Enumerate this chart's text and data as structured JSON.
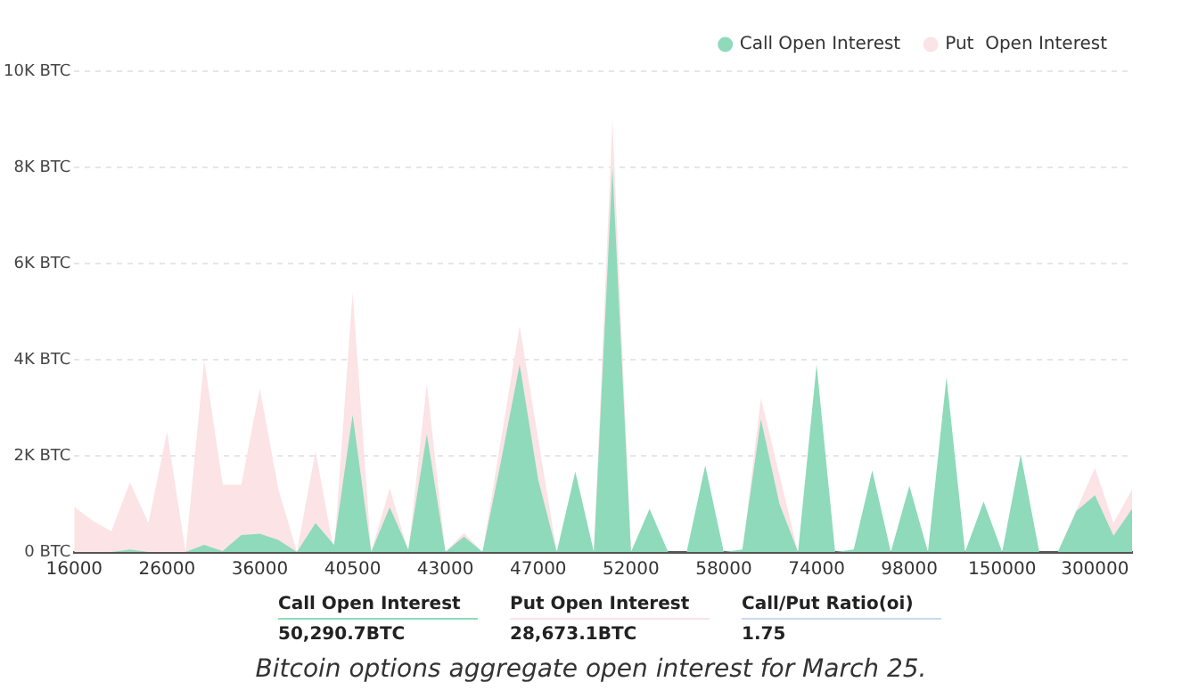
{
  "chart_data": {
    "type": "area",
    "categories": [
      "16000",
      null,
      null,
      null,
      null,
      "26000",
      null,
      null,
      null,
      null,
      "36000",
      null,
      null,
      null,
      null,
      "40500",
      null,
      null,
      null,
      null,
      "43000",
      null,
      null,
      null,
      null,
      "47000",
      null,
      null,
      null,
      null,
      "52000",
      null,
      null,
      null,
      null,
      "58000",
      null,
      null,
      null,
      null,
      "74000",
      null,
      null,
      null,
      null,
      "98000",
      null,
      null,
      null,
      null,
      "150000",
      null,
      null,
      null,
      null,
      "300000",
      null,
      null
    ],
    "series": [
      {
        "name": "Call Open Interest",
        "color": "#8edabb",
        "values": [
          0,
          0,
          0,
          50,
          0,
          0,
          0,
          150,
          20,
          350,
          380,
          250,
          0,
          600,
          150,
          2850,
          0,
          930,
          50,
          2450,
          0,
          320,
          0,
          1900,
          3900,
          1500,
          0,
          1670,
          0,
          8000,
          0,
          900,
          0,
          0,
          1800,
          0,
          50,
          2760,
          1000,
          0,
          3900,
          0,
          50,
          1700,
          0,
          1380,
          0,
          3640,
          0,
          1050,
          0,
          2030,
          0,
          0,
          850,
          1180,
          340,
          900
        ]
      },
      {
        "name": "Put  Open Interest",
        "color": "#fbe3e6",
        "values": [
          940,
          650,
          430,
          1450,
          600,
          2500,
          0,
          4000,
          1400,
          1400,
          3400,
          1300,
          0,
          2100,
          0,
          5400,
          0,
          1330,
          0,
          3500,
          0,
          400,
          0,
          null,
          4700,
          null,
          0,
          null,
          0,
          9000,
          0,
          null,
          0,
          0,
          null,
          0,
          0,
          3200,
          null,
          0,
          null,
          0,
          null,
          null,
          0,
          null,
          0,
          null,
          0,
          null,
          0,
          null,
          0,
          0,
          null,
          1750,
          600,
          1300
        ]
      }
    ],
    "ylim": [
      0,
      10000
    ],
    "yticks": [
      {
        "value": 0,
        "label": "0 BTC"
      },
      {
        "value": 2000,
        "label": "2K BTC"
      },
      {
        "value": 4000,
        "label": "4K BTC"
      },
      {
        "value": 6000,
        "label": "6K BTC"
      },
      {
        "value": 8000,
        "label": "8K BTC"
      },
      {
        "value": 10000,
        "label": "10K BTC"
      }
    ],
    "grid": "y",
    "legend": "top right",
    "annotations": [
      "Call Open Interest",
      "50,290.7BTC",
      "Put Open Interest",
      "28,673.1BTC",
      "Call/Put Ratio(oi)",
      "1.75",
      "Bitcoin options aggregate open interest for March 25."
    ]
  }
}
